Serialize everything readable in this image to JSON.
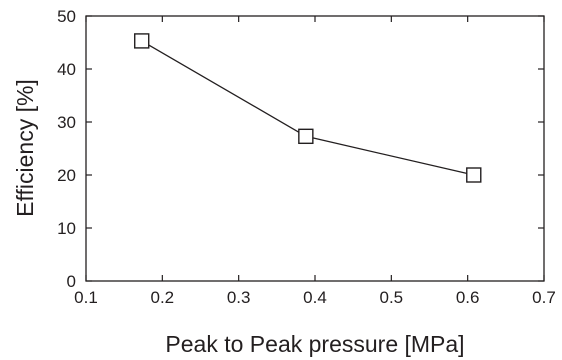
{
  "chart_data": {
    "type": "line",
    "title": "",
    "xlabel": "Peak to Peak pressure [MPa]",
    "ylabel": "Efficiency [%]",
    "xlim": [
      0.1,
      0.7
    ],
    "ylim": [
      0,
      50
    ],
    "xticks": [
      0.1,
      0.2,
      0.3,
      0.4,
      0.5,
      0.6,
      0.7
    ],
    "xtick_labels": [
      "0.1",
      "0.2",
      "0.3",
      "0.4",
      "0.5",
      "0.6",
      "0.7"
    ],
    "yticks": [
      0,
      10,
      20,
      30,
      40,
      50
    ],
    "ytick_labels": [
      "0",
      "10",
      "20",
      "30",
      "40",
      "50"
    ],
    "grid": false,
    "legend": false,
    "marker": "open-square",
    "series": [
      {
        "x": [
          0.173,
          0.388,
          0.608
        ],
        "y": [
          45.3,
          27.3,
          20.0
        ],
        "color": "#231f20"
      }
    ]
  }
}
